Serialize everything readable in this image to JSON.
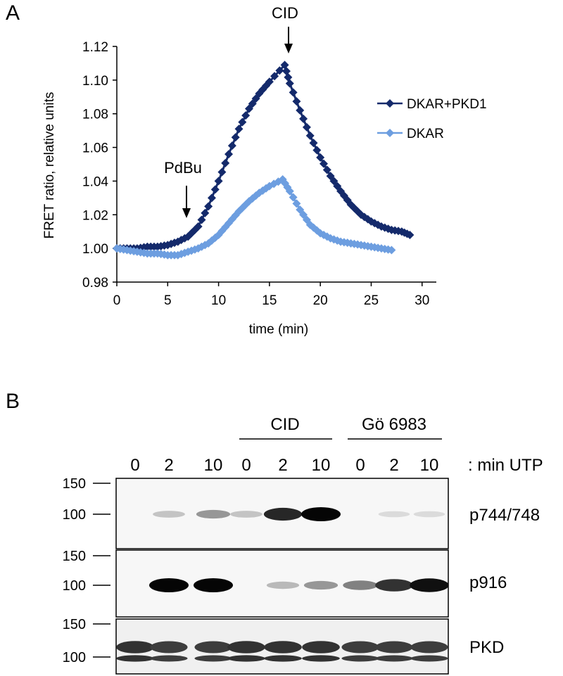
{
  "panel_a": {
    "letter": "A",
    "annotations": {
      "pdbu": "PdBu",
      "cid": "CID"
    }
  },
  "panel_b": {
    "letter": "B",
    "groups": [
      "CID",
      "Gö 6983"
    ],
    "lanes": [
      "0",
      "2",
      "10",
      "0",
      "2",
      "10",
      "0",
      "2",
      "10"
    ],
    "lanes_suffix": ": min UTP",
    "blots": [
      {
        "label": "p744/748",
        "markers": [
          "150",
          "100"
        ],
        "band_intensity": [
          0.0,
          0.15,
          0.35,
          0.15,
          0.85,
          1.0,
          0.0,
          0.05,
          0.05
        ]
      },
      {
        "label": "p916",
        "markers": [
          "150",
          "100"
        ],
        "band_intensity": [
          0.0,
          1.0,
          1.0,
          0.0,
          0.2,
          0.35,
          0.45,
          0.8,
          0.95
        ]
      },
      {
        "label": "PKD",
        "markers": [
          "150",
          "100"
        ],
        "band_intensity": [
          0.8,
          0.75,
          0.75,
          0.8,
          0.8,
          0.8,
          0.75,
          0.75,
          0.75
        ]
      }
    ]
  },
  "chart_data": {
    "type": "scatter",
    "title": "",
    "xlabel": "time (min)",
    "ylabel": "FRET ratio, relative units",
    "xlim": [
      0,
      30
    ],
    "ylim": [
      0.98,
      1.12
    ],
    "xticks": [
      "0",
      "5",
      "10",
      "15",
      "20",
      "25",
      "30"
    ],
    "yticks": [
      "0.98",
      "1.00",
      "1.02",
      "1.04",
      "1.06",
      "1.08",
      "1.10",
      "1.12"
    ],
    "legend": "right",
    "grid": false,
    "series": [
      {
        "name": "DKAR+PKD1",
        "color": "#142a6b",
        "marker": "diamond",
        "x": [
          0,
          1,
          2,
          3,
          4,
          5,
          6,
          7,
          8,
          9,
          10,
          11,
          12,
          13,
          14,
          15,
          16.5,
          17,
          18,
          19,
          20,
          21,
          22,
          23,
          24,
          25,
          26,
          27,
          28,
          28.8
        ],
        "y": [
          1.0,
          1.0,
          1.0,
          1.001,
          1.001,
          1.002,
          1.004,
          1.007,
          1.013,
          1.025,
          1.04,
          1.056,
          1.071,
          1.083,
          1.092,
          1.099,
          1.109,
          1.098,
          1.082,
          1.067,
          1.054,
          1.043,
          1.034,
          1.026,
          1.02,
          1.016,
          1.013,
          1.011,
          1.01,
          1.008
        ]
      },
      {
        "name": "DKAR",
        "color": "#6d9ee0",
        "marker": "diamond",
        "x": [
          0,
          1,
          2,
          3,
          4,
          5,
          6,
          7,
          8,
          9,
          10,
          11,
          12,
          13,
          14,
          15,
          16.3,
          17,
          18,
          19,
          20,
          21,
          22,
          23,
          24,
          25,
          26,
          27
        ],
        "y": [
          1.0,
          0.999,
          0.998,
          0.997,
          0.997,
          0.996,
          0.996,
          0.998,
          1.0,
          1.003,
          1.008,
          1.015,
          1.022,
          1.028,
          1.033,
          1.037,
          1.041,
          1.034,
          1.023,
          1.014,
          1.009,
          1.006,
          1.004,
          1.003,
          1.002,
          1.001,
          1.0,
          0.999
        ]
      }
    ]
  }
}
